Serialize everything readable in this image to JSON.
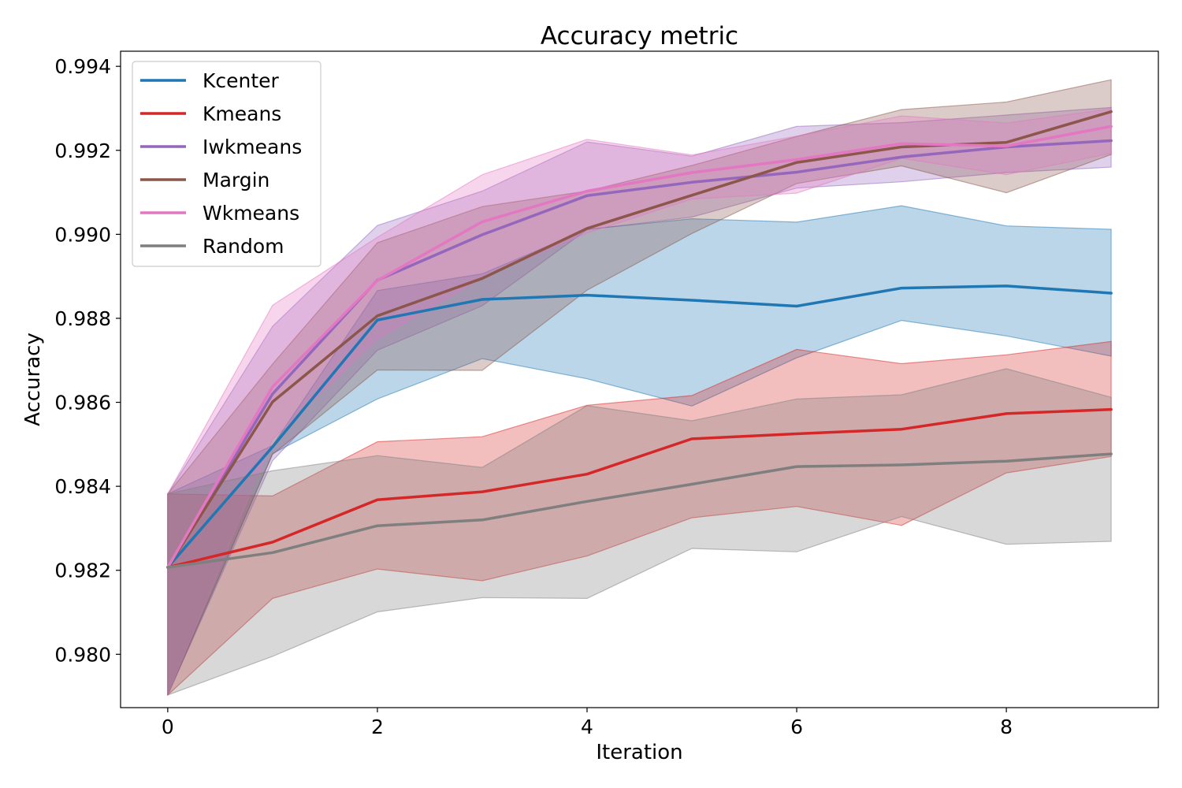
{
  "chart_data": {
    "type": "line",
    "title": "Accuracy metric",
    "xlabel": "Iteration",
    "ylabel": "Accuracy",
    "xlim": [
      -0.45,
      9.45
    ],
    "ylim": [
      0.97873,
      0.99436
    ],
    "x_ticks": [
      0,
      2,
      4,
      6,
      8
    ],
    "y_ticks": [
      0.98,
      0.982,
      0.984,
      0.986,
      0.988,
      0.99,
      0.992,
      0.994
    ],
    "y_tick_labels": [
      "0.980",
      "0.982",
      "0.984",
      "0.986",
      "0.988",
      "0.990",
      "0.992",
      "0.994"
    ],
    "grid": false,
    "legend_position": "top-left",
    "x": [
      0,
      1,
      2,
      3,
      4,
      5,
      6,
      7,
      8,
      9
    ],
    "series": [
      {
        "name": "Kcenter",
        "color": "#1f77b4",
        "values": [
          0.98207,
          0.98494,
          0.98796,
          0.98845,
          0.98855,
          0.98843,
          0.98829,
          0.98872,
          0.98877,
          0.9886
        ],
        "lower": [
          0.97903,
          0.98478,
          0.98608,
          0.98704,
          0.98656,
          0.98591,
          0.98706,
          0.98795,
          0.98758,
          0.9871
        ],
        "upper": [
          0.98382,
          0.98497,
          0.98866,
          0.98906,
          0.99012,
          0.99037,
          0.99029,
          0.99068,
          0.9902,
          0.99012
        ]
      },
      {
        "name": "Kmeans",
        "color": "#d62728",
        "values": [
          0.98207,
          0.98267,
          0.98368,
          0.98387,
          0.98429,
          0.98513,
          0.98525,
          0.98536,
          0.98573,
          0.98583
        ],
        "lower": [
          0.97903,
          0.98133,
          0.98203,
          0.98175,
          0.98234,
          0.98325,
          0.98352,
          0.98307,
          0.98432,
          0.98471
        ],
        "upper": [
          0.98382,
          0.98377,
          0.98506,
          0.98518,
          0.98593,
          0.98616,
          0.98726,
          0.98692,
          0.98713,
          0.98745
        ]
      },
      {
        "name": "Iwkmeans",
        "color": "#9467bd",
        "values": [
          0.98207,
          0.9862,
          0.98891,
          0.98999,
          0.99092,
          0.99124,
          0.99148,
          0.99184,
          0.99208,
          0.99223
        ],
        "lower": [
          0.97903,
          0.98461,
          0.98724,
          0.9883,
          0.99011,
          0.99041,
          0.9911,
          0.99125,
          0.99147,
          0.9916
        ],
        "upper": [
          0.98382,
          0.98781,
          0.99021,
          0.99103,
          0.9922,
          0.99186,
          0.99257,
          0.99266,
          0.99284,
          0.99302
        ]
      },
      {
        "name": "Margin",
        "color": "#8c564b",
        "values": [
          0.98207,
          0.98601,
          0.98806,
          0.98895,
          0.99014,
          0.99093,
          0.99171,
          0.99208,
          0.99219,
          0.99292
        ],
        "lower": [
          0.97903,
          0.98476,
          0.98677,
          0.98676,
          0.98867,
          0.99002,
          0.99121,
          0.99163,
          0.99099,
          0.9919
        ],
        "upper": [
          0.98382,
          0.98691,
          0.9898,
          0.99066,
          0.99103,
          0.99164,
          0.99233,
          0.99297,
          0.99315,
          0.99368
        ]
      },
      {
        "name": "Wkmeans",
        "color": "#e377c2",
        "values": [
          0.98207,
          0.98637,
          0.9889,
          0.9903,
          0.99103,
          0.99147,
          0.99178,
          0.99216,
          0.9921,
          0.99257
        ],
        "lower": [
          0.97903,
          0.98512,
          0.98751,
          0.98897,
          0.99003,
          0.99084,
          0.99098,
          0.99181,
          0.99142,
          0.99193
        ],
        "upper": [
          0.98382,
          0.98831,
          0.98993,
          0.99142,
          0.99226,
          0.99189,
          0.99234,
          0.99282,
          0.99265,
          0.99299
        ]
      },
      {
        "name": "Random",
        "color": "#7f7f7f",
        "values": [
          0.98207,
          0.98242,
          0.98306,
          0.9832,
          0.98364,
          0.98405,
          0.98447,
          0.98451,
          0.9846,
          0.98477
        ],
        "lower": [
          0.97903,
          0.97995,
          0.98101,
          0.98135,
          0.98133,
          0.98252,
          0.98244,
          0.98328,
          0.98262,
          0.98269
        ],
        "upper": [
          0.98382,
          0.98437,
          0.98473,
          0.98445,
          0.98592,
          0.98556,
          0.98608,
          0.98618,
          0.9868,
          0.98612
        ]
      }
    ]
  }
}
